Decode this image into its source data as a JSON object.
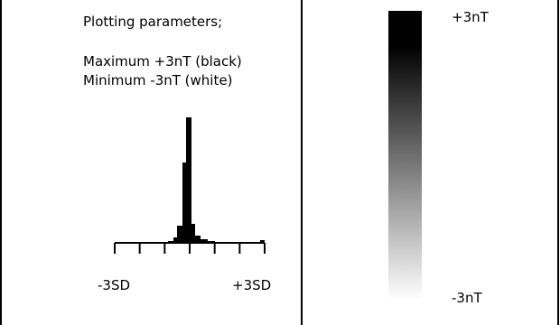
{
  "parameters": {
    "title": "Plotting parameters;",
    "maximum": "Maximum +3nT (black)",
    "minimum": "Minimum -3nT (white)"
  },
  "histogram": {
    "x_min_label": "-3SD",
    "x_max_label": "+3SD",
    "tick_count": 7
  },
  "scale": {
    "top_label": "+3nT",
    "bottom_label": "-3nT",
    "colors": {
      "max": "#000000",
      "min": "#ffffff"
    }
  }
}
